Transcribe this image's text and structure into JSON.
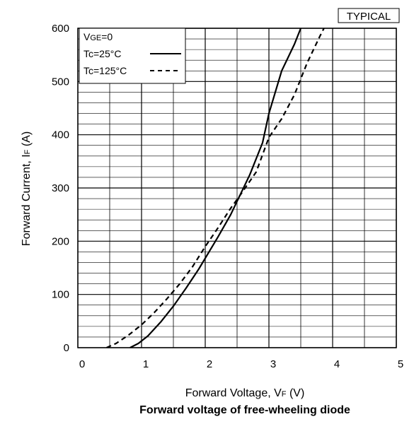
{
  "chart_data": {
    "type": "line",
    "badge": "TYPICAL",
    "title": "Forward voltage of free-wheeling diode",
    "xlabel": {
      "prefix": "Forward Voltage, V",
      "sub": "F",
      "suffix": " (V)"
    },
    "ylabel": {
      "prefix": "Forward Current, I",
      "sub": "F",
      "suffix": " (A)"
    },
    "xlim": [
      0,
      5
    ],
    "ylim": [
      0,
      600
    ],
    "x_ticks": [
      0,
      1,
      2,
      3,
      4,
      5
    ],
    "y_ticks": [
      0,
      100,
      200,
      300,
      400,
      500,
      600
    ],
    "grid": {
      "x_step": 0.5,
      "y_step": 20
    },
    "legend": {
      "header": {
        "prefix": "V",
        "sub": "GE",
        "suffix": "=0"
      },
      "placement": "top-left"
    },
    "series": [
      {
        "name": "Tc=25°C",
        "style": "solid",
        "x": [
          0.82,
          0.95,
          1.1,
          1.3,
          1.5,
          1.7,
          1.9,
          2.0,
          2.2,
          2.4,
          2.54,
          2.7,
          2.9,
          3.0,
          3.2,
          3.4,
          3.5
        ],
        "y": [
          0,
          8,
          22,
          48,
          78,
          112,
          148,
          168,
          208,
          250,
          285,
          325,
          385,
          440,
          520,
          570,
          600
        ]
      },
      {
        "name": "Tc=125°C",
        "style": "dashed",
        "x": [
          0.45,
          0.6,
          0.8,
          1.0,
          1.2,
          1.4,
          1.6,
          1.8,
          2.0,
          2.2,
          2.4,
          2.54,
          2.8,
          3.0,
          3.2,
          3.4,
          3.6,
          3.8,
          3.95
        ],
        "y": [
          0,
          8,
          24,
          43,
          66,
          92,
          120,
          152,
          190,
          225,
          262,
          285,
          330,
          395,
          430,
          475,
          535,
          585,
          620
        ]
      }
    ]
  }
}
